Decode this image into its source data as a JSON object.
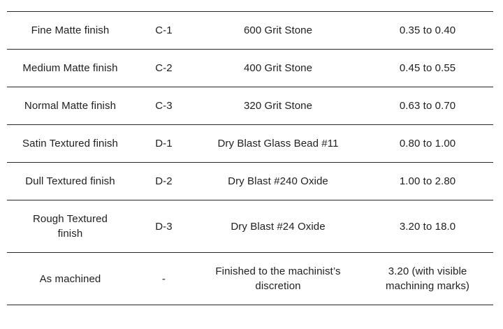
{
  "table": {
    "description": "Surface finish grades table",
    "colors": {
      "border": "#262626",
      "text": "#212121",
      "background": "#ffffff"
    },
    "rows": [
      {
        "finish": "Fine Matte finish",
        "code": "C-1",
        "method": "600 Grit Stone",
        "value": "0.35 to 0.40"
      },
      {
        "finish": "Medium Matte finish",
        "code": "C-2",
        "method": "400 Grit Stone",
        "value": "0.45 to 0.55"
      },
      {
        "finish": "Normal Matte finish",
        "code": "C-3",
        "method": "320 Grit Stone",
        "value": "0.63 to 0.70"
      },
      {
        "finish": "Satin Textured finish",
        "code": "D-1",
        "method": "Dry Blast Glass Bead #11",
        "value": "0.80 to 1.00"
      },
      {
        "finish": "Dull Textured finish",
        "code": "D-2",
        "method": "Dry Blast #240 Oxide",
        "value": "1.00 to 2.80"
      },
      {
        "finish": "Rough Textured\nfinish",
        "code": "D-3",
        "method": "Dry Blast #24 Oxide",
        "value": "3.20 to 18.0"
      },
      {
        "finish": "As machined",
        "code": "-",
        "method": "Finished to the machinist’s\ndiscretion",
        "value": "3.20 (with visible\nmachining marks)"
      }
    ]
  }
}
